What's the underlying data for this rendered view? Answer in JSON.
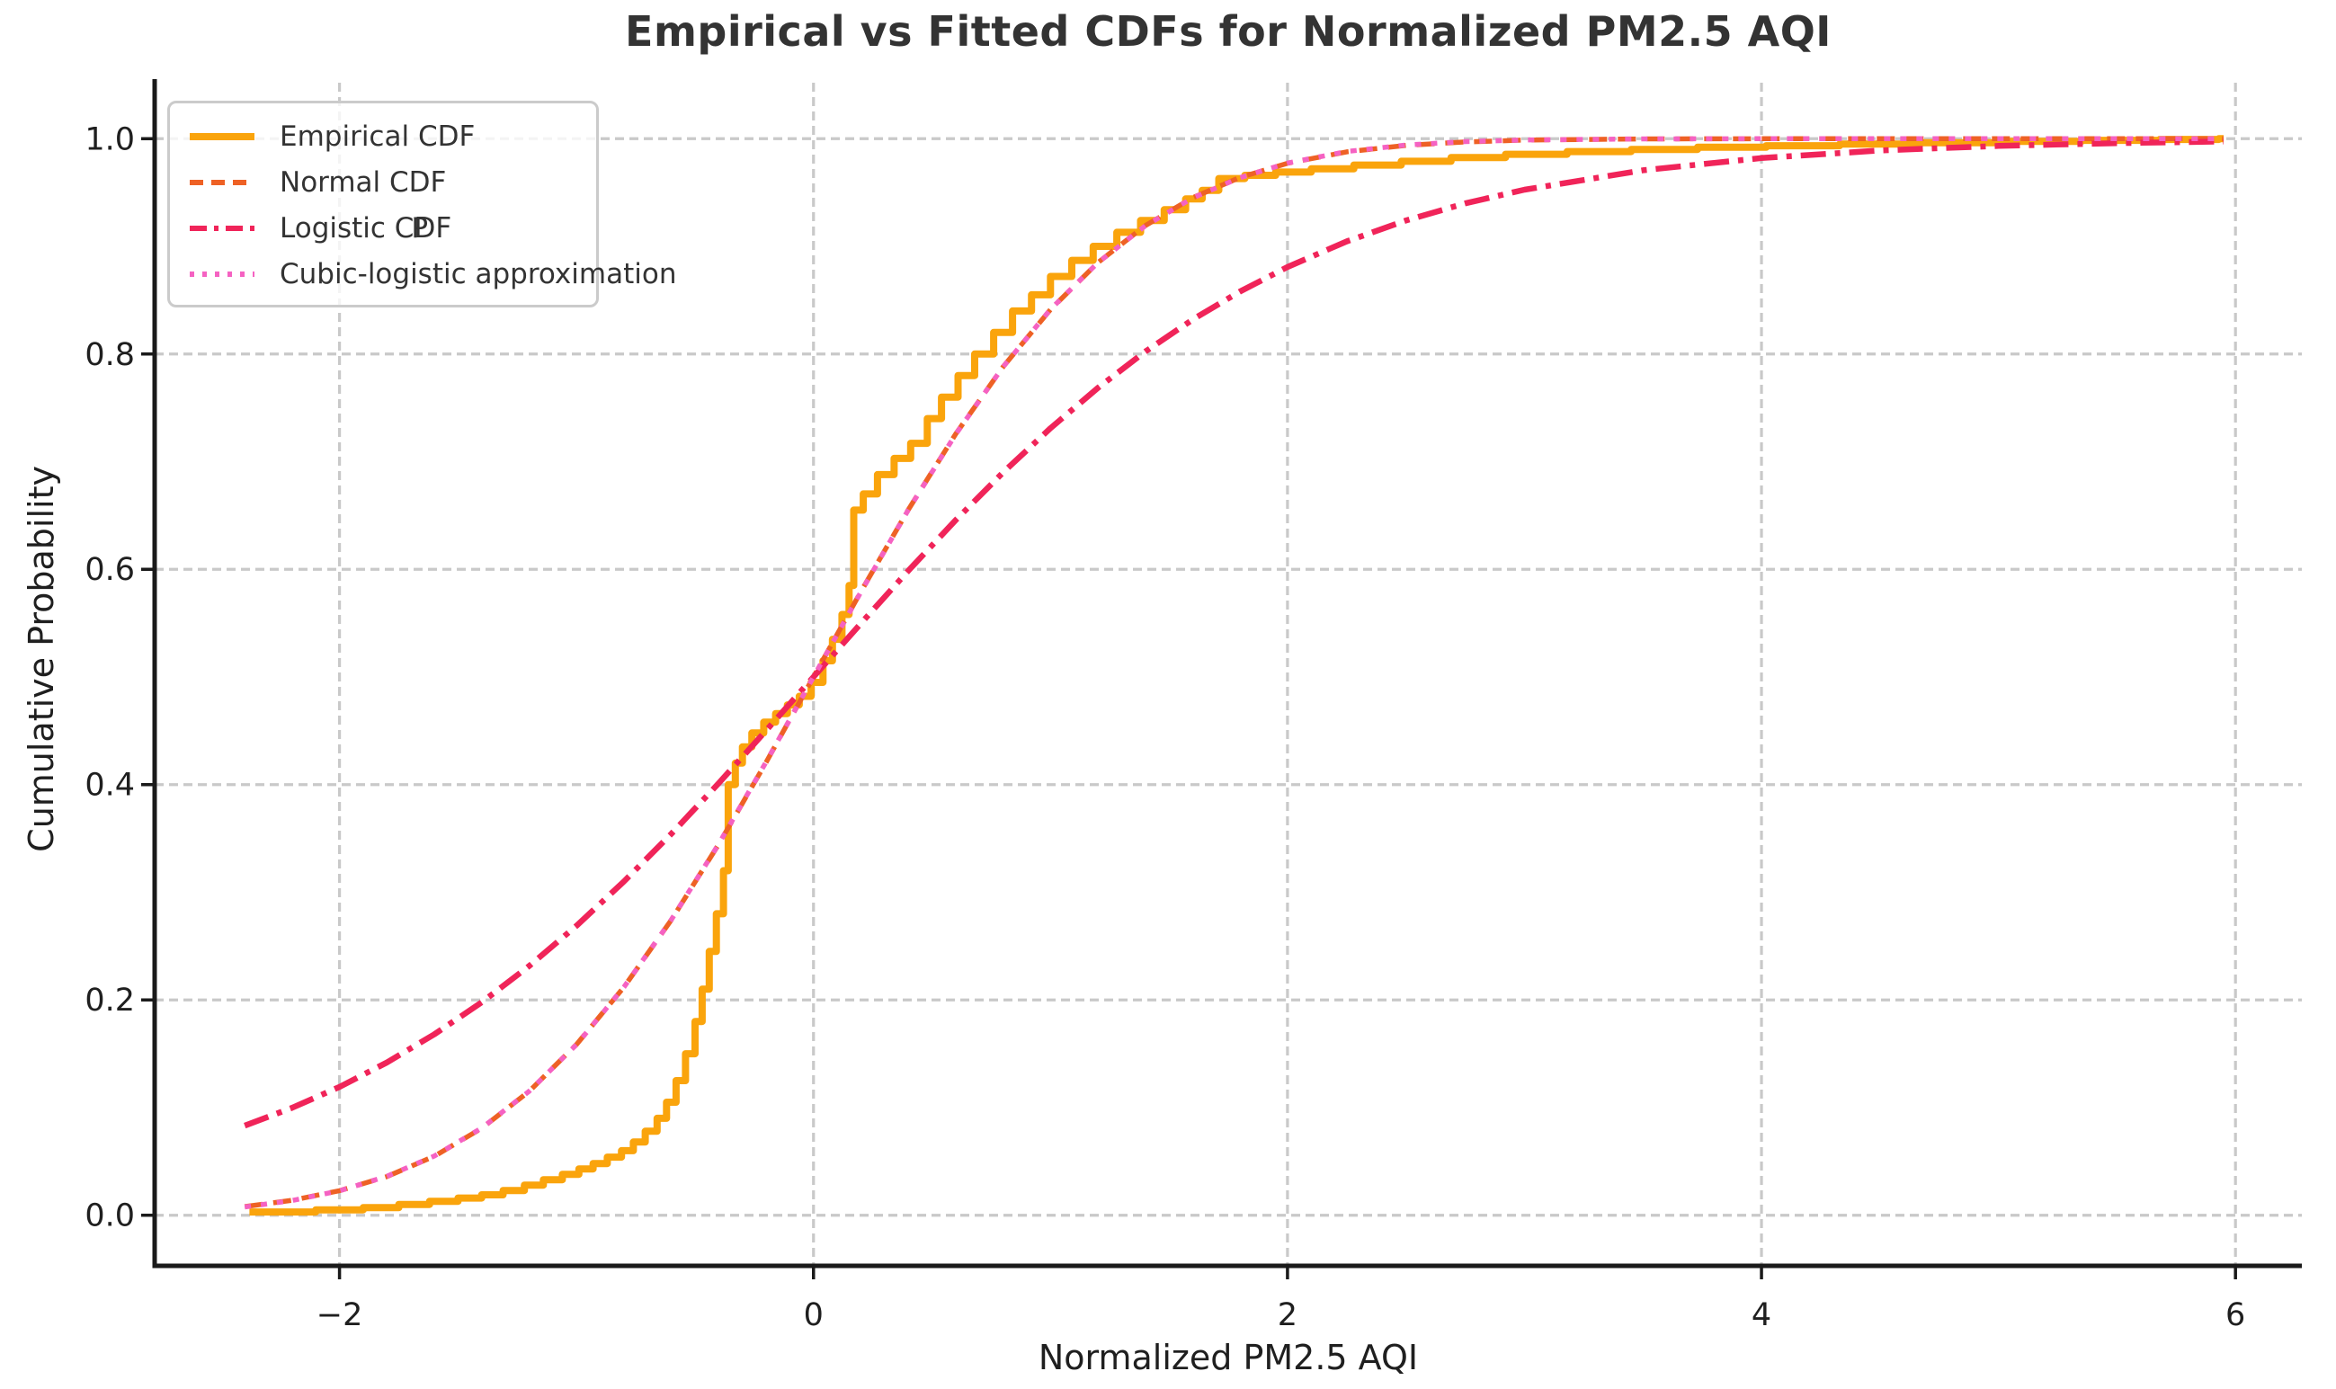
{
  "figure": {
    "title": "Empirical vs Fitted CDFs for Normalized PM2.5 AQI",
    "xlabel": "Normalized PM2.5 AQI",
    "ylabel": "Cumulative Probability"
  },
  "palette": {
    "empirical": "#FAA40C",
    "normal": "#EE6125",
    "logistic": "#F02459",
    "cubic": "#F562C2",
    "grid": "#C9C9C9",
    "spine": "#1A1A1A",
    "tick_text": "#1F1F1F",
    "title_text": "#333333",
    "legend_border": "#CBCBCB",
    "legend_bg": "rgba(255,255,255,0.8)"
  },
  "chart_data": {
    "type": "line",
    "title": "Empirical vs Fitted CDFs for Normalized PM2.5 AQI",
    "xlabel": "Normalized PM2.5 AQI",
    "ylabel": "Cumulative Probability",
    "xlim": [
      -2.78,
      6.28
    ],
    "ylim": [
      -0.047,
      1.052
    ],
    "xticks": [
      -2,
      0,
      2,
      4,
      6
    ],
    "xtick_labels": [
      "−2",
      "0",
      "2",
      "4",
      "6"
    ],
    "yticks": [
      0.0,
      0.2,
      0.4,
      0.6,
      0.8,
      1.0
    ],
    "ytick_labels": [
      "0.0",
      "0.2",
      "0.4",
      "0.6",
      "0.8",
      "1.0"
    ],
    "grid": true,
    "grid_style": "dashed",
    "legend_position": "upper-left",
    "series": [
      {
        "name": "Empirical CDF",
        "legend_label": "Empirical CDF",
        "style": "solid",
        "draw": "steps",
        "color": "#FAA40C",
        "width": 8,
        "points": [
          [
            -2.38,
            0.003
          ],
          [
            -2.1,
            0.005
          ],
          [
            -1.9,
            0.007
          ],
          [
            -1.75,
            0.01
          ],
          [
            -1.62,
            0.013
          ],
          [
            -1.5,
            0.016
          ],
          [
            -1.4,
            0.019
          ],
          [
            -1.31,
            0.023
          ],
          [
            -1.22,
            0.028
          ],
          [
            -1.14,
            0.033
          ],
          [
            -1.06,
            0.038
          ],
          [
            -0.99,
            0.043
          ],
          [
            -0.93,
            0.048
          ],
          [
            -0.87,
            0.054
          ],
          [
            -0.81,
            0.06
          ],
          [
            -0.76,
            0.068
          ],
          [
            -0.71,
            0.078
          ],
          [
            -0.66,
            0.09
          ],
          [
            -0.62,
            0.105
          ],
          [
            -0.58,
            0.125
          ],
          [
            -0.54,
            0.15
          ],
          [
            -0.5,
            0.18
          ],
          [
            -0.47,
            0.21
          ],
          [
            -0.44,
            0.245
          ],
          [
            -0.41,
            0.28
          ],
          [
            -0.38,
            0.32
          ],
          [
            -0.36,
            0.4
          ],
          [
            -0.33,
            0.42
          ],
          [
            -0.3,
            0.435
          ],
          [
            -0.26,
            0.448
          ],
          [
            -0.21,
            0.458
          ],
          [
            -0.16,
            0.466
          ],
          [
            -0.11,
            0.474
          ],
          [
            -0.06,
            0.482
          ],
          [
            -0.01,
            0.495
          ],
          [
            0.04,
            0.515
          ],
          [
            0.08,
            0.535
          ],
          [
            0.12,
            0.558
          ],
          [
            0.15,
            0.585
          ],
          [
            0.17,
            0.655
          ],
          [
            0.21,
            0.67
          ],
          [
            0.27,
            0.688
          ],
          [
            0.34,
            0.703
          ],
          [
            0.41,
            0.717
          ],
          [
            0.48,
            0.74
          ],
          [
            0.54,
            0.76
          ],
          [
            0.61,
            0.78
          ],
          [
            0.68,
            0.8
          ],
          [
            0.76,
            0.82
          ],
          [
            0.84,
            0.84
          ],
          [
            0.92,
            0.855
          ],
          [
            1.0,
            0.872
          ],
          [
            1.09,
            0.887
          ],
          [
            1.18,
            0.9
          ],
          [
            1.28,
            0.913
          ],
          [
            1.38,
            0.924
          ],
          [
            1.48,
            0.934
          ],
          [
            1.57,
            0.944
          ],
          [
            1.64,
            0.952
          ],
          [
            1.71,
            0.963
          ],
          [
            1.82,
            0.966
          ],
          [
            1.95,
            0.969
          ],
          [
            2.1,
            0.972
          ],
          [
            2.28,
            0.9755
          ],
          [
            2.48,
            0.979
          ],
          [
            2.69,
            0.9825
          ],
          [
            2.92,
            0.9855
          ],
          [
            3.18,
            0.988
          ],
          [
            3.45,
            0.99
          ],
          [
            3.73,
            0.992
          ],
          [
            4.02,
            0.9935
          ],
          [
            4.33,
            0.995
          ],
          [
            4.66,
            0.9963
          ],
          [
            5.0,
            0.9975
          ],
          [
            5.35,
            0.9985
          ],
          [
            5.68,
            0.9993
          ],
          [
            5.93,
            1.0
          ],
          [
            5.95,
            1.0
          ]
        ]
      },
      {
        "name": "Normal CDF",
        "legend_label": "Normal CDF",
        "style": "dashed",
        "draw": "line",
        "color": "#EE6125",
        "width": 5.5,
        "points": [
          [
            -2.4,
            0.008
          ],
          [
            -2.2,
            0.0139
          ],
          [
            -2.0,
            0.0228
          ],
          [
            -1.8,
            0.0359
          ],
          [
            -1.6,
            0.0548
          ],
          [
            -1.4,
            0.0808
          ],
          [
            -1.2,
            0.1151
          ],
          [
            -1.0,
            0.1587
          ],
          [
            -0.8,
            0.2119
          ],
          [
            -0.6,
            0.2743
          ],
          [
            -0.4,
            0.3446
          ],
          [
            -0.2,
            0.4207
          ],
          [
            0.0,
            0.5
          ],
          [
            0.2,
            0.5793
          ],
          [
            0.4,
            0.6554
          ],
          [
            0.6,
            0.7257
          ],
          [
            0.8,
            0.7881
          ],
          [
            1.0,
            0.8413
          ],
          [
            1.2,
            0.8849
          ],
          [
            1.4,
            0.9192
          ],
          [
            1.6,
            0.9452
          ],
          [
            1.8,
            0.9641
          ],
          [
            2.0,
            0.9772
          ],
          [
            2.25,
            0.9878
          ],
          [
            2.5,
            0.9938
          ],
          [
            2.75,
            0.997
          ],
          [
            3.0,
            0.9987
          ],
          [
            3.5,
            0.9998
          ],
          [
            4.0,
            1.0
          ],
          [
            4.5,
            1.0
          ],
          [
            5.0,
            1.0
          ],
          [
            5.5,
            1.0
          ],
          [
            5.95,
            1.0
          ]
        ]
      },
      {
        "name": "Logistic CDF",
        "legend_label": {
          "prefix": "Logistic C",
          "base": "D",
          "overlay": "P",
          "suffix": "F"
        },
        "style": "dashdot",
        "draw": "line",
        "color": "#F02459",
        "width": 6.5,
        "points": [
          [
            -2.4,
            0.0832
          ],
          [
            -2.2,
            0.0998
          ],
          [
            -2.0,
            0.1192
          ],
          [
            -1.8,
            0.1419
          ],
          [
            -1.6,
            0.168
          ],
          [
            -1.4,
            0.1978
          ],
          [
            -1.2,
            0.2315
          ],
          [
            -1.0,
            0.2689
          ],
          [
            -0.8,
            0.31
          ],
          [
            -0.6,
            0.3543
          ],
          [
            -0.4,
            0.4013
          ],
          [
            -0.2,
            0.4502
          ],
          [
            0.0,
            0.5
          ],
          [
            0.2,
            0.5498
          ],
          [
            0.4,
            0.5987
          ],
          [
            0.6,
            0.6457
          ],
          [
            0.8,
            0.69
          ],
          [
            1.0,
            0.7311
          ],
          [
            1.2,
            0.7685
          ],
          [
            1.4,
            0.8022
          ],
          [
            1.6,
            0.832
          ],
          [
            1.8,
            0.8581
          ],
          [
            2.0,
            0.8808
          ],
          [
            2.25,
            0.9046
          ],
          [
            2.5,
            0.9241
          ],
          [
            2.75,
            0.9399
          ],
          [
            3.0,
            0.9526
          ],
          [
            3.5,
            0.9707
          ],
          [
            4.0,
            0.982
          ],
          [
            4.5,
            0.989
          ],
          [
            5.0,
            0.9933
          ],
          [
            5.5,
            0.9959
          ],
          [
            5.95,
            0.9974
          ]
        ]
      },
      {
        "name": "Cubic-logistic approximation",
        "legend_label": "Cubic-logistic approximation",
        "style": "dotted",
        "draw": "line",
        "color": "#F562C2",
        "width": 5.5,
        "points": [
          [
            -2.4,
            0.0077
          ],
          [
            -2.2,
            0.0136
          ],
          [
            -2.0,
            0.0227
          ],
          [
            -1.8,
            0.0362
          ],
          [
            -1.6,
            0.055
          ],
          [
            -1.4,
            0.081
          ],
          [
            -1.2,
            0.1152
          ],
          [
            -1.0,
            0.1585
          ],
          [
            -0.8,
            0.2119
          ],
          [
            -0.6,
            0.2745
          ],
          [
            -0.4,
            0.3448
          ],
          [
            -0.2,
            0.421
          ],
          [
            0.0,
            0.5
          ],
          [
            0.2,
            0.579
          ],
          [
            0.4,
            0.6552
          ],
          [
            0.6,
            0.7255
          ],
          [
            0.8,
            0.7881
          ],
          [
            1.0,
            0.8415
          ],
          [
            1.2,
            0.8848
          ],
          [
            1.4,
            0.919
          ],
          [
            1.6,
            0.945
          ],
          [
            1.8,
            0.9638
          ],
          [
            2.0,
            0.9773
          ],
          [
            2.25,
            0.9881
          ],
          [
            2.5,
            0.9941
          ],
          [
            2.75,
            0.9973
          ],
          [
            3.0,
            0.9988
          ],
          [
            3.5,
            0.9998
          ],
          [
            4.0,
            1.0
          ],
          [
            4.5,
            1.0
          ],
          [
            5.0,
            1.0
          ],
          [
            5.5,
            1.0
          ],
          [
            5.95,
            1.0
          ]
        ]
      }
    ]
  }
}
